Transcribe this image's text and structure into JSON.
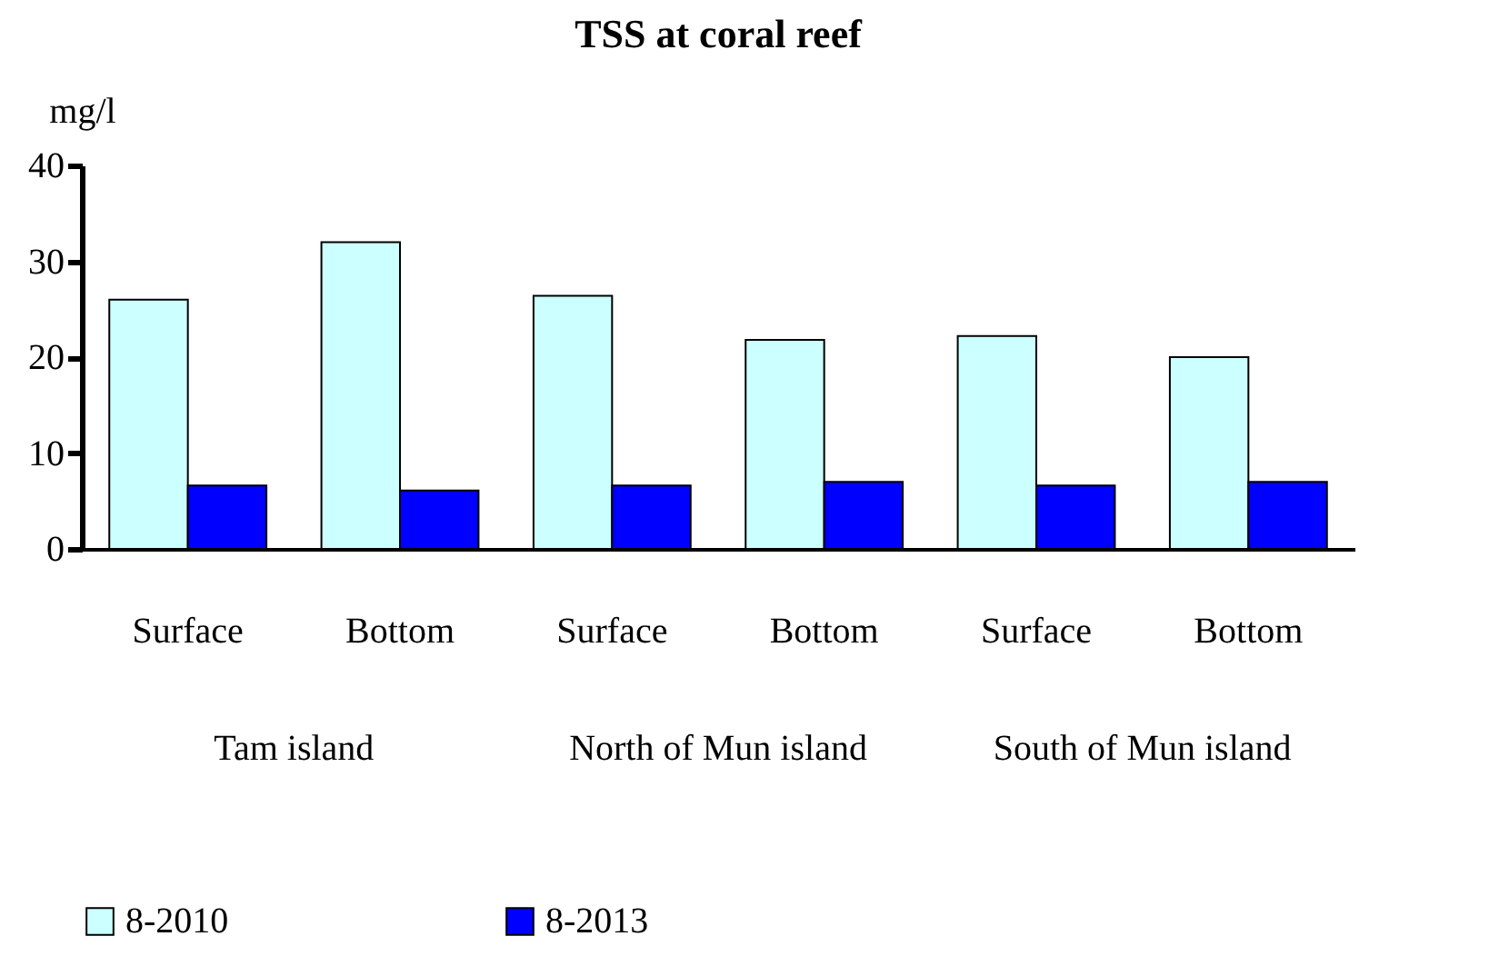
{
  "chart_data": {
    "type": "bar",
    "title": "TSS at coral reef",
    "ylabel": "mg/l",
    "categories": [
      "Surface",
      "Bottom",
      "Surface",
      "Bottom",
      "Surface",
      "Bottom"
    ],
    "annotations": [
      "Tam island",
      "North of Mun island",
      "South of Mun island"
    ],
    "series": [
      {
        "name": "8-2010",
        "color": "#ccffff",
        "values": [
          26,
          32,
          26.4,
          21.8,
          22.2,
          20
        ]
      },
      {
        "name": "8-2013",
        "color": "#0000ff",
        "values": [
          6.6,
          6.1,
          6.6,
          7,
          6.6,
          7
        ]
      }
    ],
    "ylim": [
      0,
      40
    ],
    "yticks": [
      0,
      10,
      20,
      30,
      40
    ],
    "legend": "bottom"
  }
}
